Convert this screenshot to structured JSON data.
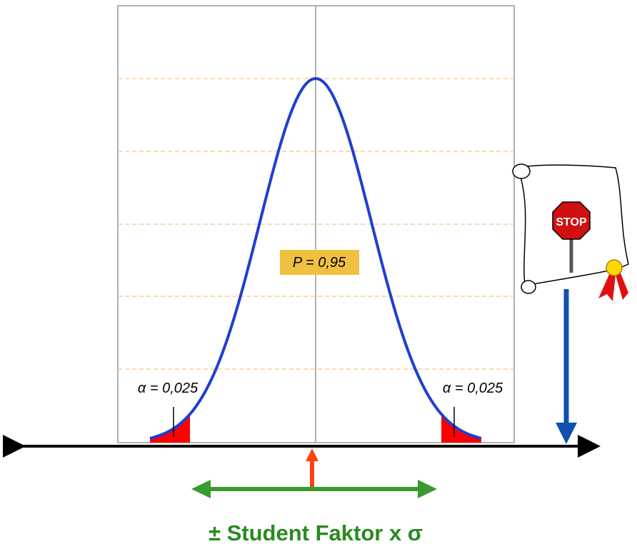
{
  "labels": {
    "alpha_left": "α = 0,025",
    "alpha_right": "α = 0,025",
    "probability": "P = 0,95",
    "caption": "± Student Faktor x σ",
    "sign": "STOP"
  }
}
